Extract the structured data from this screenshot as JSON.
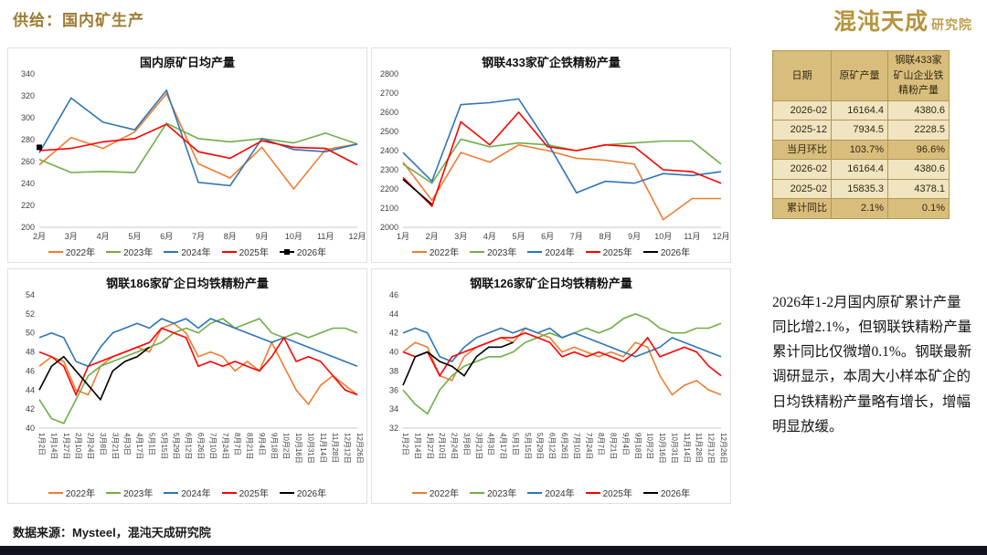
{
  "page": {
    "title": "供给：国内矿生产",
    "logo_main": "混沌天成",
    "logo_sub": "研究院",
    "footer": "数据来源：Mysteel，混沌天成研究院"
  },
  "commentary": "2026年1-2月国内原矿累计产量同比增2.1%，但钢联铁精粉产量累计同比仅微增0.1%。钢联最新调研显示，本周大小样本矿企的日均铁精粉产量略有增长，增幅明显放缓。",
  "table": {
    "headers": [
      "日期",
      "原矿产量",
      "钢联433家矿山企业铁精粉产量"
    ],
    "rows": [
      [
        "2026-02",
        "16164.4",
        "4380.6"
      ],
      [
        "2025-12",
        "7934.5",
        "2228.5"
      ],
      [
        "当月环比",
        "103.7%",
        "96.6%"
      ],
      [
        "2026-02",
        "16164.4",
        "4380.6"
      ],
      [
        "2025-02",
        "15835.3",
        "4378.1"
      ],
      [
        "累计同比",
        "2.1%",
        "0.1%"
      ]
    ],
    "highlight_rows": [
      2,
      5
    ]
  },
  "colors": {
    "s2022": "#ED7D31",
    "s2023": "#70AD47",
    "s2024": "#2E75B6",
    "s2025": "#FF0000",
    "s2026": "#000000",
    "accent_gold": "#9c7c35",
    "table_dark": "#d9bd7d",
    "table_light": "#f0e4c1",
    "bottom_bar": "#13131d"
  },
  "chart_data": [
    {
      "type": "line",
      "title": "国内原矿日均产量",
      "categories": [
        "2月",
        "3月",
        "4月",
        "5月",
        "6月",
        "7月",
        "8月",
        "9月",
        "10月",
        "11月",
        "12月"
      ],
      "ylim": [
        200,
        340
      ],
      "ytick": 20,
      "rotated_x": false,
      "series": [
        {
          "name": "2022年",
          "color_key": "s2022",
          "values": [
            257,
            282,
            272,
            287,
            322,
            258,
            245,
            273,
            235,
            271,
            276
          ]
        },
        {
          "name": "2023年",
          "color_key": "s2023",
          "values": [
            262,
            250,
            251,
            250,
            295,
            281,
            278,
            281,
            277,
            286,
            276
          ]
        },
        {
          "name": "2024年",
          "color_key": "s2024",
          "values": [
            268,
            318,
            296,
            289,
            325,
            241,
            238,
            281,
            271,
            269,
            276
          ]
        },
        {
          "name": "2025年",
          "color_key": "s2025",
          "values": [
            270,
            272,
            278,
            281,
            294,
            269,
            263,
            279,
            273,
            272,
            257
          ]
        },
        {
          "name": "2026年",
          "color_key": "s2026",
          "marker": true,
          "values": [
            273
          ]
        }
      ]
    },
    {
      "type": "line",
      "title": "钢联433家矿企铁精粉产量",
      "categories": [
        "1月",
        "2月",
        "3月",
        "4月",
        "5月",
        "6月",
        "7月",
        "8月",
        "9月",
        "10月",
        "11月",
        "12月"
      ],
      "ylim": [
        2000,
        2800
      ],
      "ytick": 100,
      "rotated_x": false,
      "series": [
        {
          "name": "2022年",
          "color_key": "s2022",
          "values": [
            2340,
            2140,
            2390,
            2340,
            2430,
            2400,
            2360,
            2350,
            2330,
            2040,
            2150,
            2150
          ]
        },
        {
          "name": "2023年",
          "color_key": "s2023",
          "values": [
            2330,
            2230,
            2460,
            2420,
            2440,
            2430,
            2400,
            2430,
            2440,
            2450,
            2450,
            2330
          ]
        },
        {
          "name": "2024年",
          "color_key": "s2024",
          "values": [
            2390,
            2240,
            2640,
            2650,
            2670,
            2440,
            2180,
            2240,
            2230,
            2280,
            2270,
            2290
          ]
        },
        {
          "name": "2025年",
          "color_key": "s2025",
          "values": [
            2260,
            2110,
            2550,
            2430,
            2600,
            2420,
            2400,
            2430,
            2420,
            2300,
            2290,
            2230
          ]
        },
        {
          "name": "2026年",
          "color_key": "s2026",
          "values": [
            2250,
            2120
          ]
        }
      ]
    },
    {
      "type": "line",
      "title": "钢联186家矿企日均铁精粉产量",
      "categories": [
        "1月2日",
        "1月14日",
        "1月27日",
        "2月10日",
        "2月24日",
        "3月8日",
        "3月21日",
        "4月3日",
        "4月17日",
        "5月1日",
        "5月15日",
        "5月29日",
        "6月12日",
        "6月26日",
        "7月10日",
        "7月24日",
        "8月7日",
        "8月21日",
        "9月4日",
        "9月18日",
        "10月2日",
        "10月16日",
        "10月31日",
        "11月14日",
        "11月28日",
        "12月12日",
        "12月26日"
      ],
      "ylim": [
        40,
        54
      ],
      "ytick": 2,
      "rotated_x": true,
      "series": [
        {
          "name": "2022年",
          "color_key": "s2022",
          "values": [
            46.5,
            47.5,
            47,
            44,
            43.5,
            46.5,
            47.5,
            48,
            48.5,
            48,
            50.5,
            51,
            50,
            47.5,
            48,
            47.5,
            46,
            47,
            46,
            49,
            46.5,
            44,
            42.5,
            44.5,
            45.5,
            44.5,
            43.5
          ]
        },
        {
          "name": "2023年",
          "color_key": "s2023",
          "values": [
            43,
            41,
            40.5,
            43,
            45.5,
            46.5,
            47,
            47.5,
            48,
            48.5,
            49,
            50,
            50.5,
            50,
            51,
            51.5,
            50.5,
            51,
            51.5,
            50,
            49.5,
            50,
            49.5,
            50,
            50.5,
            50.5,
            50
          ]
        },
        {
          "name": "2024年",
          "color_key": "s2024",
          "values": [
            49.5,
            50,
            49.5,
            47,
            46.5,
            48.5,
            50,
            50.5,
            51,
            50.5,
            51.5,
            51,
            51.5,
            50.5,
            51.5,
            51,
            50.5,
            50,
            49.5,
            49,
            49.5,
            49,
            48.5,
            48,
            47.5,
            47,
            46.5
          ]
        },
        {
          "name": "2025年",
          "color_key": "s2025",
          "values": [
            48,
            47.5,
            46.5,
            43.5,
            46.5,
            47,
            47.5,
            48,
            48.5,
            49,
            50.5,
            50,
            49.5,
            46.5,
            47,
            46.5,
            47,
            46.5,
            46,
            47.5,
            49.5,
            47,
            47.5,
            47,
            45.5,
            44,
            43.5
          ]
        },
        {
          "name": "2026年",
          "color_key": "s2026",
          "values": [
            44,
            46.5,
            47.5,
            46,
            44.5,
            43,
            46,
            47,
            47.5,
            48.5
          ]
        }
      ]
    },
    {
      "type": "line",
      "title": "钢联126家矿企日均铁精粉产量",
      "categories": [
        "1月2日",
        "1月14日",
        "1月27日",
        "2月10日",
        "2月24日",
        "3月8日",
        "3月21日",
        "4月3日",
        "4月17日",
        "5月1日",
        "5月15日",
        "5月29日",
        "6月12日",
        "6月26日",
        "7月10日",
        "7月24日",
        "8月7日",
        "8月21日",
        "9月4日",
        "9月18日",
        "10月2日",
        "10月16日",
        "10月31日",
        "11月14日",
        "11月28日",
        "12月12日",
        "12月26日"
      ],
      "ylim": [
        32,
        46
      ],
      "ytick": 2,
      "rotated_x": true,
      "series": [
        {
          "name": "2022年",
          "color_key": "s2022",
          "values": [
            40,
            41,
            40.5,
            37.5,
            37,
            39.5,
            40.5,
            41,
            41.5,
            41,
            42.5,
            42,
            41.5,
            40,
            40.5,
            40,
            39.5,
            40,
            39.5,
            41,
            40.5,
            37.5,
            35.5,
            36.5,
            37,
            36,
            35.5
          ]
        },
        {
          "name": "2023年",
          "color_key": "s2023",
          "values": [
            36,
            34.5,
            33.5,
            36,
            37.5,
            38.5,
            39,
            39.5,
            39.5,
            40,
            41,
            41.5,
            42,
            41.5,
            42,
            42.5,
            42,
            42.5,
            43.5,
            44,
            43.5,
            42.5,
            42,
            42,
            42.5,
            42.5,
            43
          ]
        },
        {
          "name": "2024年",
          "color_key": "s2024",
          "values": [
            42,
            42.5,
            42,
            39.5,
            39,
            40.5,
            41.5,
            42,
            42.5,
            42,
            42.5,
            42,
            42.5,
            41.5,
            42,
            41.5,
            41,
            40.5,
            40,
            39.5,
            40,
            40.5,
            41.5,
            41,
            40.5,
            40,
            39.5
          ]
        },
        {
          "name": "2025年",
          "color_key": "s2025",
          "values": [
            40,
            39.5,
            40,
            37.5,
            39.5,
            40,
            40.5,
            41,
            41.5,
            41.5,
            42,
            41.5,
            41,
            39.5,
            40,
            39.5,
            40,
            39.5,
            39,
            40,
            41.5,
            39.5,
            40,
            40.5,
            40,
            38.5,
            37.5
          ]
        },
        {
          "name": "2026年",
          "color_key": "s2026",
          "values": [
            36.5,
            39.5,
            40,
            39,
            38.5,
            37.5,
            39.5,
            40.5,
            40.5,
            41
          ]
        }
      ]
    }
  ]
}
